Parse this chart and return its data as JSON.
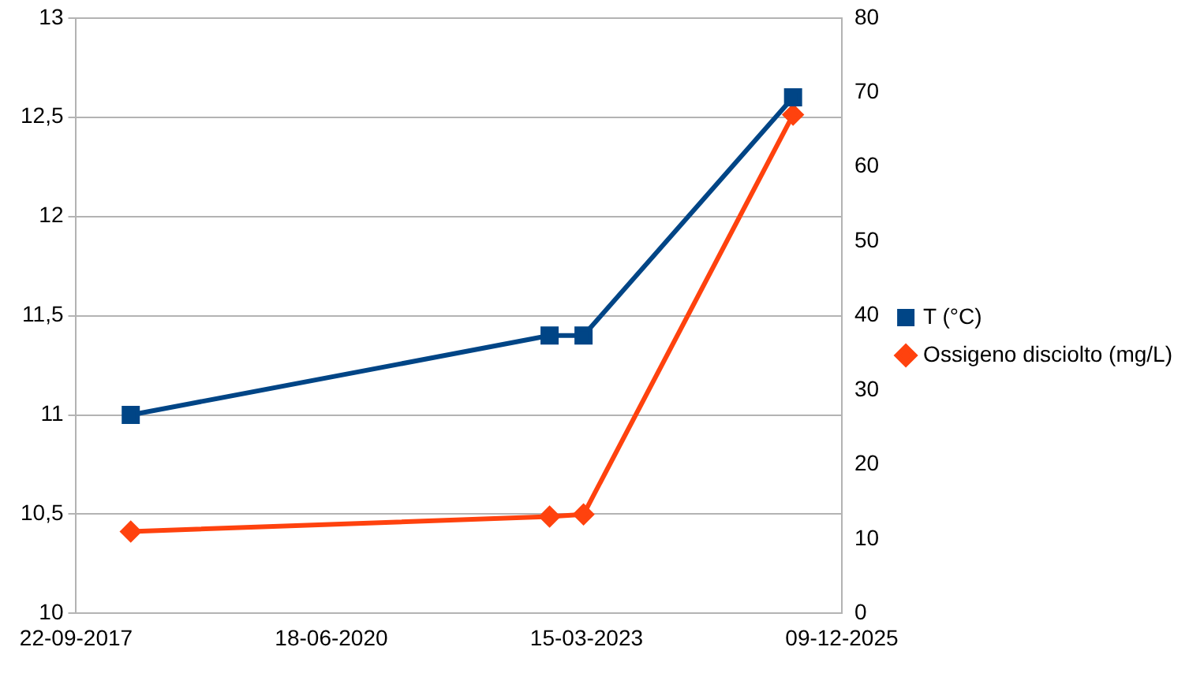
{
  "chart_data": {
    "type": "line",
    "x": [
      "2018-04-24",
      "2022-10-21",
      "2023-03-03",
      "2025-06-01"
    ],
    "series": [
      {
        "name": "T (°C)",
        "color": "#004586",
        "values": [
          11.0,
          11.4,
          11.4,
          12.6
        ],
        "marker": "square"
      },
      {
        "name": "Ossigeno disciolto (mg/L)",
        "color": "#ff420e",
        "values": [
          11,
          13,
          13.3,
          67
        ],
        "axis": "y2",
        "marker": "diamond"
      }
    ],
    "xlim": [
      "2017-09-22",
      "2025-12-09"
    ],
    "xticks": [
      {
        "value": "2017-09-22",
        "label": "22-09-2017"
      },
      {
        "value": "2020-06-18",
        "label": "18-06-2020"
      },
      {
        "value": "2023-03-15",
        "label": "15-03-2023"
      },
      {
        "value": "2025-12-09",
        "label": "09-12-2025"
      }
    ],
    "ylim": [
      10,
      13
    ],
    "yticks": [
      10,
      {
        "value": 10.5,
        "label": "10,5"
      },
      11,
      {
        "value": 11.5,
        "label": "11,5"
      },
      12,
      {
        "value": 12.5,
        "label": "12,5"
      },
      13
    ],
    "y2lim": [
      0,
      80
    ],
    "y2ticks": [
      0,
      10,
      20,
      30,
      40,
      50,
      60,
      70,
      80
    ],
    "grid": "y",
    "legend": "right",
    "line_style": "solid"
  }
}
